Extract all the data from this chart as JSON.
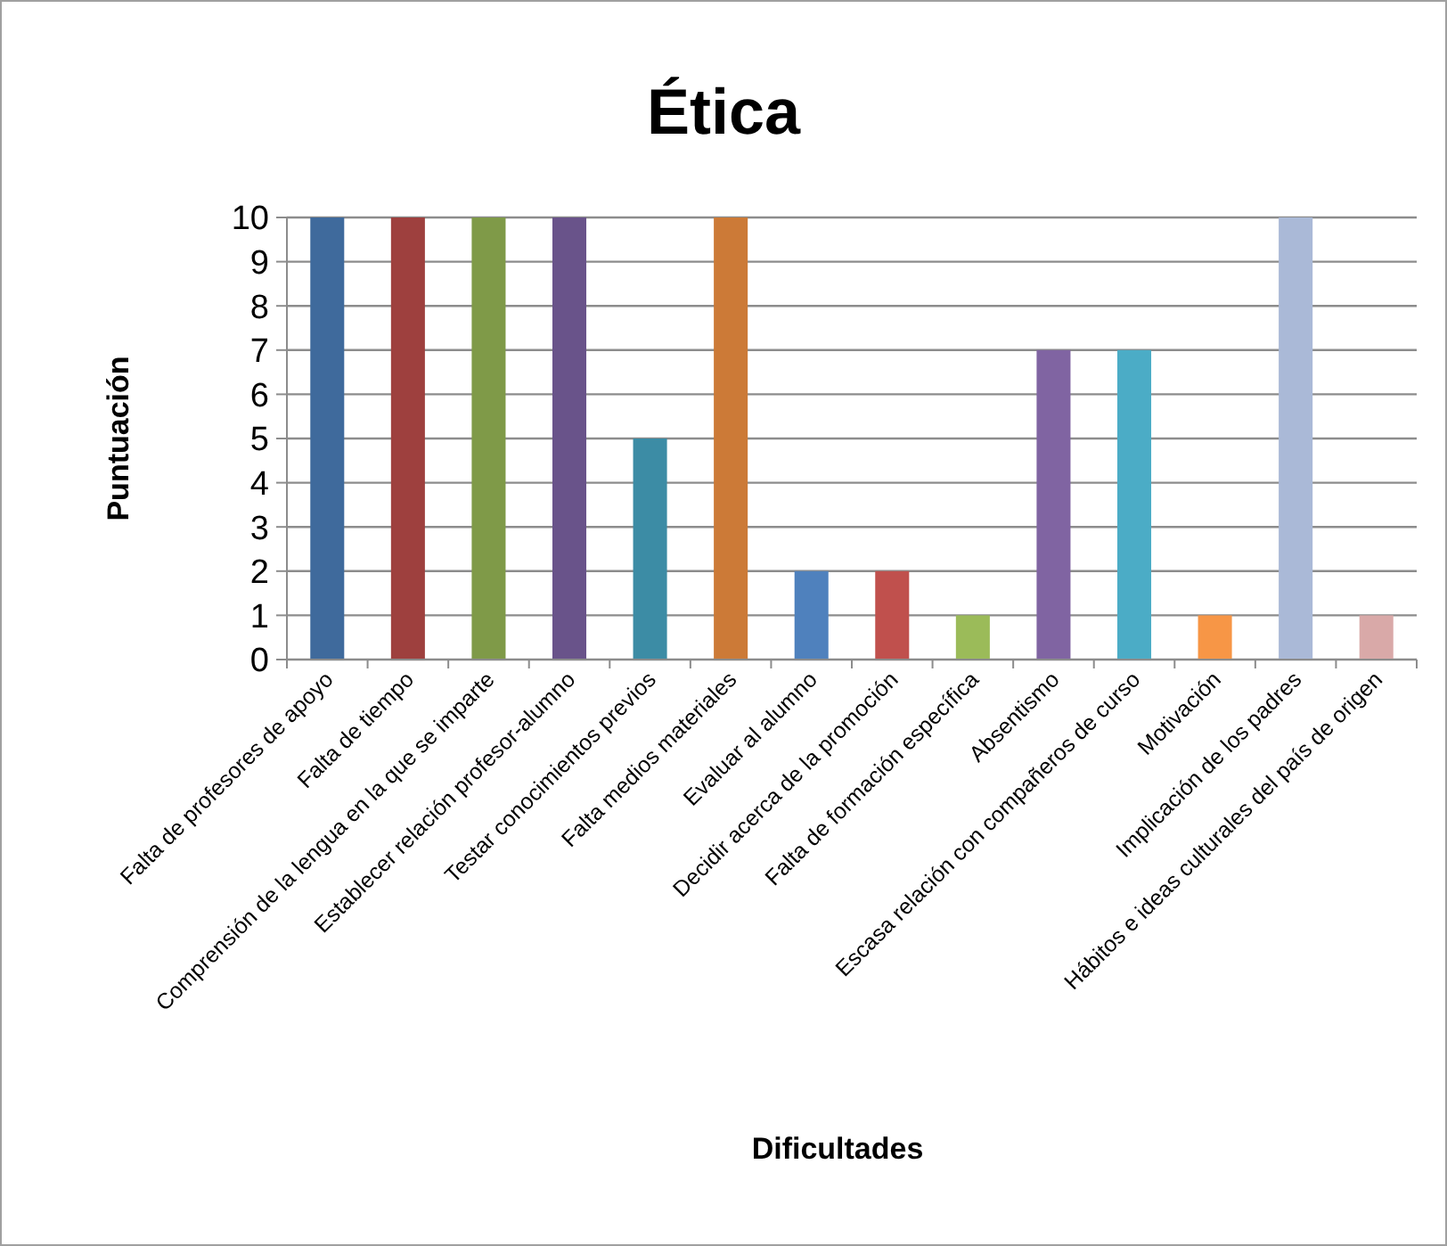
{
  "chart_data": {
    "type": "bar",
    "title": "Ética",
    "xlabel": "Dificultades",
    "ylabel": "Puntuación",
    "categories": [
      "Falta de profesores de apoyo",
      "Falta de tiempo",
      "Comprensión de la lengua en la que se imparte",
      "Establecer relación profesor-alumno",
      "Testar conocimientos previos",
      "Falta medios materiales",
      "Evaluar al alumno",
      "Decidir acerca de la promoción",
      "Falta de formación específica",
      "Absentismo",
      "Escasa relación con compañeros de curso",
      "Motivación",
      "Implicación de los padres",
      "Hábitos e ideas culturales del país de origen"
    ],
    "values": [
      10,
      10,
      10,
      10,
      5,
      10,
      2,
      2,
      1,
      7,
      7,
      1,
      10,
      1
    ],
    "colors": [
      "#3f6a9c",
      "#9e403e",
      "#7f9a48",
      "#69538a",
      "#3c8ca5",
      "#cc7a37",
      "#4f81bd",
      "#c0504d",
      "#9bbb59",
      "#8064a2",
      "#4bacc6",
      "#f79646",
      "#aab9d7",
      "#d9a9a8"
    ],
    "ylim": [
      0,
      10
    ],
    "yticks": [
      0,
      1,
      2,
      3,
      4,
      5,
      6,
      7,
      8,
      9,
      10
    ],
    "grid": "y"
  }
}
